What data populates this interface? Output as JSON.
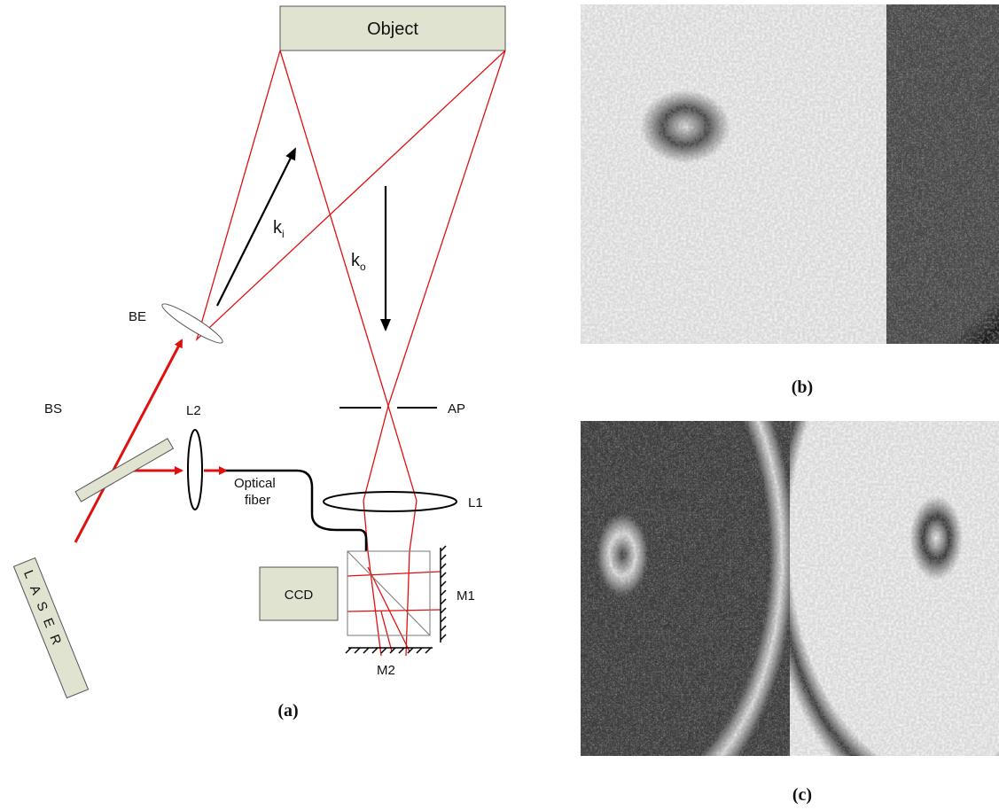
{
  "diagram": {
    "object": "Object",
    "ki": {
      "main": "k",
      "sub": "i"
    },
    "ko": {
      "main": "k",
      "sub": "o"
    },
    "be": "BE",
    "bs": "BS",
    "l2": "L2",
    "fiber": [
      "Optical",
      "fiber"
    ],
    "l1": "L1",
    "ap": "AP",
    "ccd": "CCD",
    "m1": "M1",
    "m2": "M2",
    "laser": "LASER",
    "caption": "(a)"
  },
  "images": {
    "b": {
      "caption": "(b)"
    },
    "c": {
      "caption": "(c)"
    }
  }
}
